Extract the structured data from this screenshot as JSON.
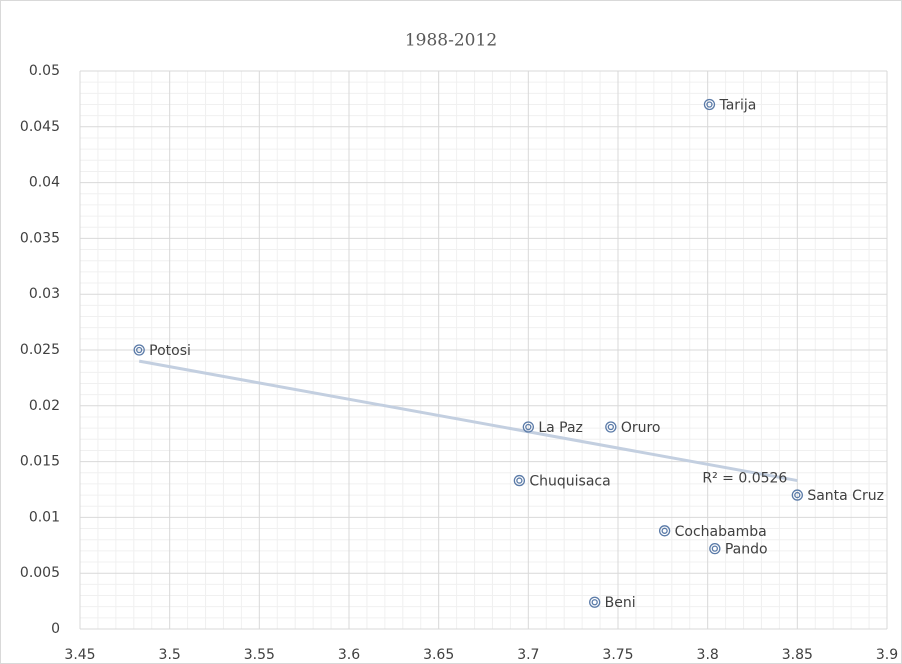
{
  "chart_data": {
    "type": "scatter",
    "title": "1988-2012",
    "x": [
      3.801,
      3.483,
      3.7,
      3.746,
      3.695,
      3.85,
      3.776,
      3.804,
      3.737
    ],
    "values": [
      0.047,
      0.025,
      0.0181,
      0.0181,
      0.0133,
      0.012,
      0.0088,
      0.0072,
      0.0024
    ],
    "point_labels": [
      "Tarija",
      "Potosi",
      "La Paz",
      "Oruro",
      "Chuquisaca",
      "Santa Cruz",
      "Cochabamba",
      "Pando",
      "Beni"
    ],
    "color": "#5b7ba8",
    "trendline": {
      "x": [
        3.483,
        3.85
      ],
      "y": [
        0.024,
        0.0133
      ],
      "color": "#c3cfe0",
      "annotation": "R² = 0.0526"
    },
    "xlim": [
      3.45,
      3.9
    ],
    "xticks": [
      3.45,
      3.5,
      3.55,
      3.6,
      3.65,
      3.7,
      3.75,
      3.8,
      3.85,
      3.9
    ],
    "ylim": [
      0,
      0.05
    ],
    "yticks": [
      0,
      0.005,
      0.01,
      0.015,
      0.02,
      0.025,
      0.03,
      0.035,
      0.04,
      0.045,
      0.05
    ],
    "grid": true,
    "minor_grid": true
  }
}
